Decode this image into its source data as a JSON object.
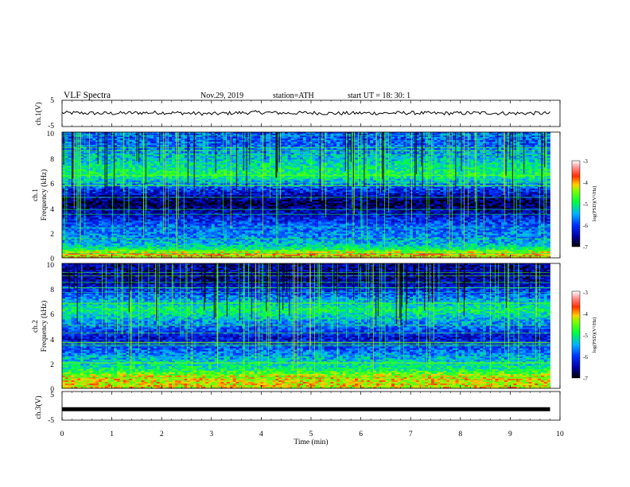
{
  "header": {
    "title": "VLF  Spectra",
    "date": "Nov.29, 2019",
    "station": "station=ATH",
    "start": "start  UT  =   18: 30: 1"
  },
  "chart_data": [
    {
      "type": "line",
      "name": "ch1_waveform",
      "ylabel": "ch.1(V)",
      "ylim": [
        -5,
        5
      ],
      "yticks": [
        "5",
        "-5"
      ],
      "xlim": [
        0,
        10
      ],
      "x": [
        0.0,
        0.5,
        1.0,
        1.5,
        2.0,
        2.5,
        3.0,
        3.5,
        4.0,
        4.5,
        5.0,
        5.5,
        6.0,
        6.5,
        7.0,
        7.5,
        8.0,
        8.5,
        9.0,
        9.5,
        9.8
      ],
      "values": [
        0.2,
        0.1,
        0.0,
        0.2,
        0.3,
        0.1,
        -0.2,
        0.2,
        0.4,
        0.1,
        0.2,
        0.0,
        0.1,
        0.1,
        0.2,
        0.0,
        0.1,
        0.2,
        0.0,
        0.1,
        0.0
      ]
    },
    {
      "type": "heatmap",
      "name": "ch1_spectrogram",
      "ylabel_top": "ch.1",
      "ylabel": "Frequency  (kHz)",
      "ylim": [
        0,
        10
      ],
      "yticks": [
        "10",
        "8",
        "6",
        "4",
        "2",
        "0"
      ],
      "xlim": [
        0,
        9.8
      ],
      "colorbar": {
        "label": "log(PSD)(V²/Hz)",
        "range": [
          -7,
          -3
        ],
        "ticks": [
          "-3",
          "-4",
          "-5",
          "-6",
          "-7"
        ]
      },
      "band_profile": [
        {
          "f_kHz": 0.3,
          "level": -4.0
        },
        {
          "f_kHz": 0.8,
          "level": -5.2
        },
        {
          "f_kHz": 1.5,
          "level": -5.6
        },
        {
          "f_kHz": 2.5,
          "level": -5.8
        },
        {
          "f_kHz": 4.3,
          "level": -6.8
        },
        {
          "f_kHz": 5.5,
          "level": -6.0
        },
        {
          "f_kHz": 6.6,
          "level": -4.9
        },
        {
          "f_kHz": 9.0,
          "level": -5.8
        }
      ]
    },
    {
      "type": "heatmap",
      "name": "ch2_spectrogram",
      "ylabel_top": "ch.2",
      "ylabel": "Frequency  (kHz)",
      "ylim": [
        0,
        10
      ],
      "yticks": [
        "10",
        "8",
        "6",
        "4",
        "2",
        "0"
      ],
      "xlim": [
        0,
        9.8
      ],
      "colorbar": {
        "label": "log(PSD)(V²/Hz)",
        "range": [
          -7,
          -3
        ],
        "ticks": [
          "-3",
          "-4",
          "-5",
          "-6",
          "-7"
        ]
      },
      "band_profile": [
        {
          "f_kHz": 0.9,
          "level": -4.2
        },
        {
          "f_kHz": 1.5,
          "level": -5.0
        },
        {
          "f_kHz": 2.5,
          "level": -5.5
        },
        {
          "f_kHz": 4.0,
          "level": -6.3
        },
        {
          "f_kHz": 6.3,
          "level": -5.0
        },
        {
          "f_kHz": 8.5,
          "level": -6.5
        }
      ]
    },
    {
      "type": "line",
      "name": "ch3_waveform",
      "ylabel": "ch.3(V)",
      "ylim": [
        -5,
        5
      ],
      "yticks": [
        "5",
        "-5"
      ],
      "xlim": [
        0,
        10
      ],
      "xlabel": "Time  (min)",
      "xticks": [
        "0",
        "1",
        "2",
        "3",
        "4",
        "5",
        "6",
        "7",
        "8",
        "9",
        "10"
      ],
      "x": [
        0.0,
        9.8
      ],
      "values": [
        -1.2,
        -1.2
      ]
    }
  ]
}
